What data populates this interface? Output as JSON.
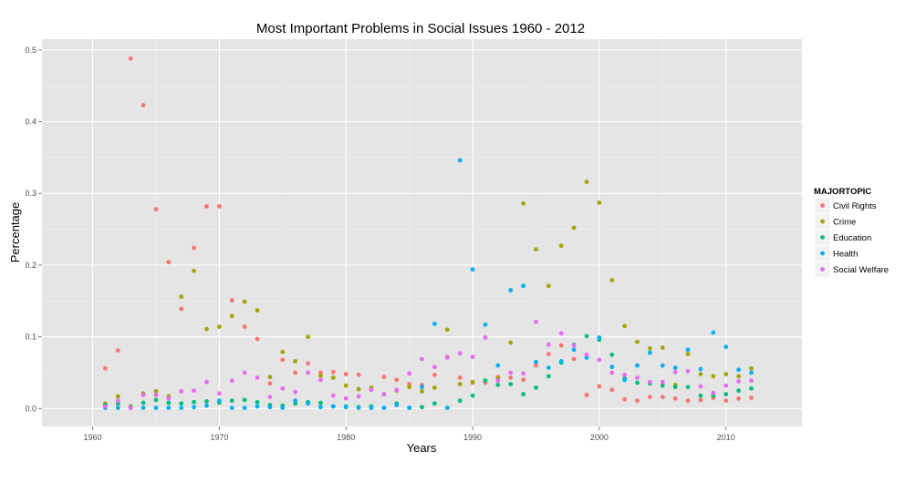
{
  "chart_data": {
    "type": "scatter",
    "title": "Most Important Problems in Social Issues 1960 - 2012",
    "xlabel": "Years",
    "ylabel": "Percentage",
    "xlim": [
      1956,
      2016
    ],
    "ylim": [
      -0.025,
      0.515
    ],
    "xticks": [
      1960,
      1970,
      1980,
      1990,
      2000,
      2010
    ],
    "yticks": [
      0.0,
      0.1,
      0.2,
      0.3,
      0.4,
      0.5
    ],
    "ytick_labels": [
      "0.0",
      "0.1",
      "0.2",
      "0.3",
      "0.4",
      "0.5"
    ],
    "grid": true,
    "legend": {
      "title": "MAJORTOPIC",
      "position": "right"
    },
    "x": [
      1961,
      1962,
      1963,
      1964,
      1965,
      1966,
      1967,
      1968,
      1969,
      1970,
      1971,
      1972,
      1973,
      1974,
      1975,
      1976,
      1977,
      1978,
      1979,
      1980,
      1981,
      1982,
      1983,
      1984,
      1985,
      1986,
      1987,
      1988,
      1989,
      1990,
      1991,
      1992,
      1993,
      1994,
      1995,
      1996,
      1997,
      1998,
      1999,
      2000,
      2001,
      2002,
      2003,
      2004,
      2005,
      2006,
      2007,
      2008,
      2009,
      2010,
      2011,
      2012
    ],
    "series": [
      {
        "name": "Civil Rights",
        "color": "#F8766D",
        "values": [
          0.056,
          0.081,
          0.488,
          0.423,
          0.278,
          0.204,
          0.139,
          0.224,
          0.282,
          0.282,
          0.151,
          0.114,
          0.097,
          0.035,
          0.068,
          0.05,
          0.063,
          0.05,
          0.051,
          0.048,
          0.047,
          0.027,
          0.044,
          0.04,
          0.034,
          0.033,
          0.047,
          0.072,
          0.043,
          0.036,
          0.036,
          0.044,
          0.043,
          0.04,
          0.06,
          0.076,
          0.088,
          0.069,
          0.019,
          0.031,
          0.026,
          0.013,
          0.011,
          0.016,
          0.016,
          0.014,
          0.011,
          0.012,
          0.015,
          0.011,
          0.014,
          0.015
        ]
      },
      {
        "name": "Crime",
        "color": "#A3A500",
        "values": [
          0.007,
          0.017,
          0.003,
          0.021,
          0.024,
          0.017,
          0.156,
          0.192,
          0.111,
          0.114,
          0.129,
          0.149,
          0.137,
          0.044,
          0.079,
          0.066,
          0.1,
          0.046,
          0.043,
          0.032,
          0.027,
          0.029,
          0.02,
          0.025,
          0.03,
          0.024,
          0.029,
          0.11,
          0.034,
          0.037,
          0.039,
          0.042,
          0.092,
          0.286,
          0.222,
          0.171,
          0.227,
          0.252,
          0.316,
          0.287,
          0.179,
          0.115,
          0.093,
          0.084,
          0.085,
          0.033,
          0.076,
          0.048,
          0.045,
          0.048,
          0.045,
          0.056
        ]
      },
      {
        "name": "Education",
        "color": "#00BF7D",
        "values": [
          0.005,
          0.007,
          0.002,
          0.008,
          0.012,
          0.008,
          0.007,
          0.009,
          0.01,
          0.008,
          0.011,
          0.012,
          0.009,
          0.005,
          0.004,
          0.007,
          0.009,
          0.008,
          0.003,
          0.003,
          0.002,
          0.003,
          0.001,
          0.007,
          0.001,
          0.002,
          0.007,
          0.001,
          0.011,
          0.018,
          0.039,
          0.033,
          0.034,
          0.02,
          0.029,
          0.045,
          0.064,
          0.089,
          0.101,
          0.096,
          0.075,
          0.042,
          0.036,
          0.035,
          0.032,
          0.03,
          0.03,
          0.018,
          0.018,
          0.02,
          0.025,
          0.028
        ]
      },
      {
        "name": "Health",
        "color": "#00B0F6",
        "values": [
          0.001,
          0.001,
          0.001,
          0.001,
          0.001,
          0.001,
          0.001,
          0.002,
          0.004,
          0.011,
          0.001,
          0.001,
          0.003,
          0.002,
          0.001,
          0.011,
          0.007,
          0.002,
          0.003,
          0.002,
          0.001,
          0.001,
          0.001,
          0.005,
          0.001,
          0.03,
          0.118,
          0.001,
          0.346,
          0.194,
          0.117,
          0.06,
          0.165,
          0.171,
          0.065,
          0.057,
          0.066,
          0.082,
          0.071,
          0.099,
          0.058,
          0.04,
          0.06,
          0.078,
          0.06,
          0.057,
          0.082,
          0.055,
          0.106,
          0.086,
          0.054,
          0.05
        ]
      },
      {
        "name": "Social Welfare",
        "color": "#E76BF3",
        "values": [
          0.003,
          0.011,
          0.001,
          0.019,
          0.019,
          0.014,
          0.024,
          0.025,
          0.037,
          0.021,
          0.039,
          0.05,
          0.043,
          0.016,
          0.028,
          0.023,
          0.05,
          0.04,
          0.018,
          0.014,
          0.017,
          0.026,
          0.02,
          0.026,
          0.049,
          0.069,
          0.058,
          0.071,
          0.077,
          0.072,
          0.099,
          0.039,
          0.05,
          0.049,
          0.121,
          0.089,
          0.105,
          0.088,
          0.075,
          0.068,
          0.05,
          0.047,
          0.043,
          0.037,
          0.037,
          0.051,
          0.052,
          0.031,
          0.022,
          0.032,
          0.038,
          0.039
        ]
      }
    ]
  }
}
